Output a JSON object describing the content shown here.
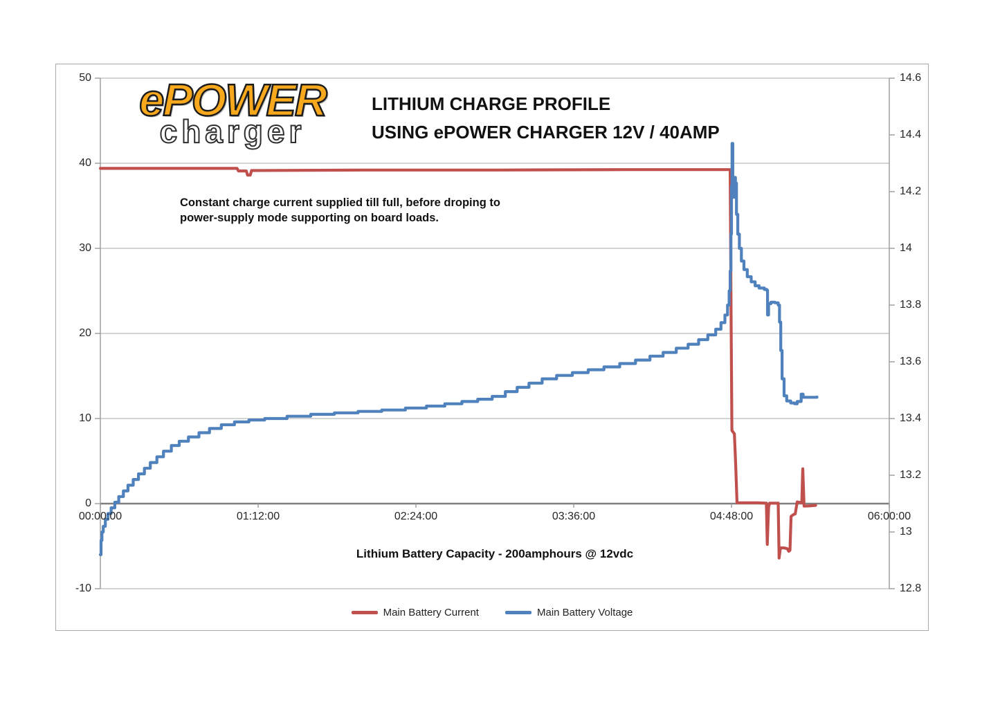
{
  "logo": {
    "line1": "ePOWER",
    "line2": "charger",
    "fill_color": "#F7A81D",
    "outline_color": "#1C1C1C"
  },
  "title": {
    "line1": "LITHIUM CHARGE PROFILE",
    "line2": "USING ePOWER CHARGER 12V / 40AMP"
  },
  "annotation": {
    "line1": "Constant charge current supplied till full, before droping to",
    "line2": "power-supply mode supporting on board loads."
  },
  "chart_data": {
    "type": "line",
    "grid": "horizontal-only",
    "x_axis": {
      "label": "Lithium Battery Capacity - 200amphours @ 12vdc",
      "ticks": [
        "00:00:00",
        "01:12:00",
        "02:24:00",
        "03:36:00",
        "04:48:00",
        "06:00:00"
      ],
      "range_hours": [
        0,
        6
      ]
    },
    "left_axis": {
      "ticks": [
        50,
        40,
        30,
        20,
        10,
        0,
        -10
      ],
      "range": [
        -10,
        50
      ],
      "unit": "amps"
    },
    "right_axis": {
      "ticks": [
        14.6,
        14.4,
        14.2,
        14,
        13.8,
        13.6,
        13.4,
        13.2,
        13,
        12.8
      ],
      "range": [
        12.8,
        14.6
      ],
      "unit": "volts"
    },
    "colors": {
      "gridline": "#C6C6C6",
      "zero_line": "#7F7F7F",
      "axis_line": "#9A9A9A"
    },
    "legend": {
      "position": "bottom-center",
      "entries": [
        {
          "name": "Main Battery Current",
          "color": "#C0504D"
        },
        {
          "name": "Main Battery Voltage",
          "color": "#4F81BD"
        }
      ]
    },
    "series": [
      {
        "name": "Main Battery Current",
        "axis": "left",
        "color": "#C0504D",
        "step": false,
        "points": [
          [
            0.0,
            39.4
          ],
          [
            1.04,
            39.4
          ],
          [
            1.05,
            39.1
          ],
          [
            1.11,
            39.1
          ],
          [
            1.12,
            38.6
          ],
          [
            1.14,
            38.6
          ],
          [
            1.15,
            39.15
          ],
          [
            2.0,
            39.2
          ],
          [
            3.0,
            39.2
          ],
          [
            4.0,
            39.25
          ],
          [
            4.79,
            39.25
          ],
          [
            4.798,
            20
          ],
          [
            4.803,
            8.6
          ],
          [
            4.822,
            8.2
          ],
          [
            4.832,
            4.5
          ],
          [
            4.842,
            0.1
          ],
          [
            5.0,
            0.1
          ],
          [
            5.065,
            0.05
          ],
          [
            5.072,
            -4.8
          ],
          [
            5.082,
            -0.4
          ],
          [
            5.09,
            0.05
          ],
          [
            5.155,
            0.05
          ],
          [
            5.162,
            -6.4
          ],
          [
            5.172,
            -5.2
          ],
          [
            5.2,
            -5.2
          ],
          [
            5.225,
            -5.3
          ],
          [
            5.235,
            -5.6
          ],
          [
            5.245,
            -5.5
          ],
          [
            5.253,
            -1.5
          ],
          [
            5.27,
            -1.3
          ],
          [
            5.285,
            -1.2
          ],
          [
            5.3,
            0.2
          ],
          [
            5.335,
            0.1
          ],
          [
            5.342,
            4.1
          ],
          [
            5.352,
            -0.3
          ],
          [
            5.4,
            -0.25
          ],
          [
            5.44,
            -0.2
          ]
        ]
      },
      {
        "name": "Main Battery Voltage",
        "axis": "right",
        "color": "#4F81BD",
        "step": true,
        "points": [
          [
            0.0,
            12.92
          ],
          [
            0.005,
            12.97
          ],
          [
            0.012,
            13.0
          ],
          [
            0.022,
            13.02
          ],
          [
            0.038,
            13.045
          ],
          [
            0.058,
            13.065
          ],
          [
            0.082,
            13.085
          ],
          [
            0.11,
            13.105
          ],
          [
            0.14,
            13.125
          ],
          [
            0.175,
            13.145
          ],
          [
            0.21,
            13.165
          ],
          [
            0.25,
            13.185
          ],
          [
            0.29,
            13.205
          ],
          [
            0.335,
            13.225
          ],
          [
            0.38,
            13.245
          ],
          [
            0.43,
            13.265
          ],
          [
            0.48,
            13.285
          ],
          [
            0.54,
            13.305
          ],
          [
            0.6,
            13.32
          ],
          [
            0.67,
            13.335
          ],
          [
            0.75,
            13.35
          ],
          [
            0.83,
            13.365
          ],
          [
            0.92,
            13.378
          ],
          [
            1.02,
            13.388
          ],
          [
            1.13,
            13.395
          ],
          [
            1.25,
            13.4
          ],
          [
            1.42,
            13.408
          ],
          [
            1.6,
            13.415
          ],
          [
            1.78,
            13.42
          ],
          [
            1.96,
            13.425
          ],
          [
            2.14,
            13.43
          ],
          [
            2.32,
            13.437
          ],
          [
            2.48,
            13.444
          ],
          [
            2.62,
            13.452
          ],
          [
            2.75,
            13.46
          ],
          [
            2.87,
            13.468
          ],
          [
            2.98,
            13.478
          ],
          [
            3.08,
            13.495
          ],
          [
            3.17,
            13.51
          ],
          [
            3.26,
            13.525
          ],
          [
            3.36,
            13.54
          ],
          [
            3.47,
            13.552
          ],
          [
            3.59,
            13.562
          ],
          [
            3.71,
            13.572
          ],
          [
            3.83,
            13.582
          ],
          [
            3.95,
            13.594
          ],
          [
            4.07,
            13.606
          ],
          [
            4.18,
            13.62
          ],
          [
            4.28,
            13.633
          ],
          [
            4.38,
            13.648
          ],
          [
            4.47,
            13.662
          ],
          [
            4.55,
            13.678
          ],
          [
            4.62,
            13.695
          ],
          [
            4.68,
            13.715
          ],
          [
            4.72,
            13.738
          ],
          [
            4.75,
            13.765
          ],
          [
            4.77,
            13.8
          ],
          [
            4.782,
            13.85
          ],
          [
            4.79,
            13.92
          ],
          [
            4.796,
            14.05
          ],
          [
            4.8,
            14.22
          ],
          [
            4.804,
            14.37
          ],
          [
            4.81,
            14.2
          ],
          [
            4.816,
            14.18
          ],
          [
            4.822,
            14.25
          ],
          [
            4.83,
            14.23
          ],
          [
            4.838,
            14.12
          ],
          [
            4.848,
            14.05
          ],
          [
            4.86,
            14.0
          ],
          [
            4.875,
            13.955
          ],
          [
            4.895,
            13.925
          ],
          [
            4.92,
            13.9
          ],
          [
            4.95,
            13.882
          ],
          [
            4.98,
            13.868
          ],
          [
            5.01,
            13.86
          ],
          [
            5.05,
            13.855
          ],
          [
            5.068,
            13.852
          ],
          [
            5.074,
            13.765
          ],
          [
            5.082,
            13.805
          ],
          [
            5.1,
            13.81
          ],
          [
            5.13,
            13.808
          ],
          [
            5.155,
            13.8
          ],
          [
            5.165,
            13.74
          ],
          [
            5.175,
            13.64
          ],
          [
            5.185,
            13.54
          ],
          [
            5.2,
            13.48
          ],
          [
            5.22,
            13.462
          ],
          [
            5.25,
            13.455
          ],
          [
            5.28,
            13.452
          ],
          [
            5.3,
            13.46
          ],
          [
            5.33,
            13.486
          ],
          [
            5.345,
            13.475
          ],
          [
            5.4,
            13.475
          ],
          [
            5.45,
            13.476
          ]
        ]
      }
    ]
  }
}
